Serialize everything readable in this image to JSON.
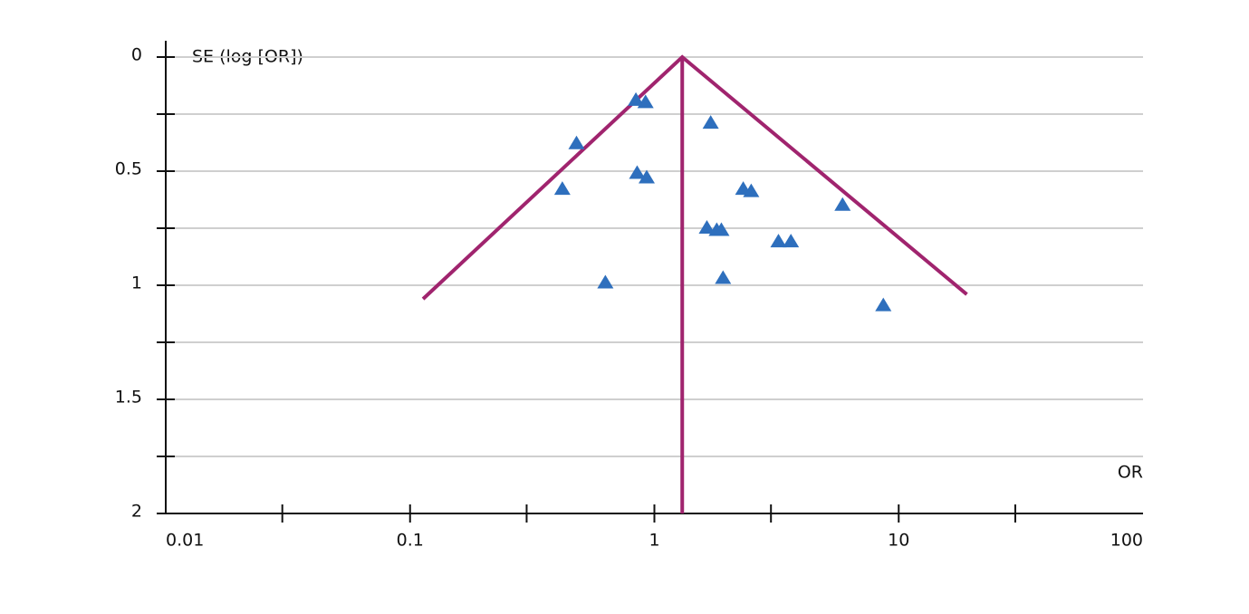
{
  "chart_data": {
    "type": "scatter",
    "y_label": "SE (log [OR])",
    "x_label": "OR",
    "xscale": "log",
    "xlim": [
      0.01,
      100
    ],
    "xticks": [
      0.01,
      0.1,
      1,
      10,
      100
    ],
    "xticks_minor": [
      0.03,
      0.3,
      3,
      30
    ],
    "ylim": [
      0,
      2
    ],
    "y_inverted": true,
    "yticks": [
      0,
      0.5,
      1,
      1.5,
      2
    ],
    "yticks_minor": [
      0.25,
      0.75,
      1.25,
      1.75
    ],
    "grid": true,
    "points": {
      "color": "#2e6fbd",
      "x": [
        0.84,
        0.92,
        1.7,
        0.48,
        0.85,
        0.93,
        0.42,
        2.31,
        2.49,
        5.89,
        1.64,
        1.8,
        1.88,
        3.22,
        3.62,
        0.63,
        1.91,
        8.65
      ],
      "y": [
        0.19,
        0.2,
        0.29,
        0.38,
        0.51,
        0.53,
        0.58,
        0.58,
        0.59,
        0.65,
        0.75,
        0.76,
        0.76,
        0.81,
        0.81,
        0.99,
        0.97,
        1.09
      ]
    },
    "lines": [
      {
        "color": "#a0246e",
        "x": [
          0.113,
          1.3,
          19
        ],
        "y": [
          1.06,
          0,
          1.04
        ]
      },
      {
        "color": "#a0246e",
        "x": [
          1.3,
          1.3
        ],
        "y": [
          0,
          2
        ]
      }
    ]
  }
}
